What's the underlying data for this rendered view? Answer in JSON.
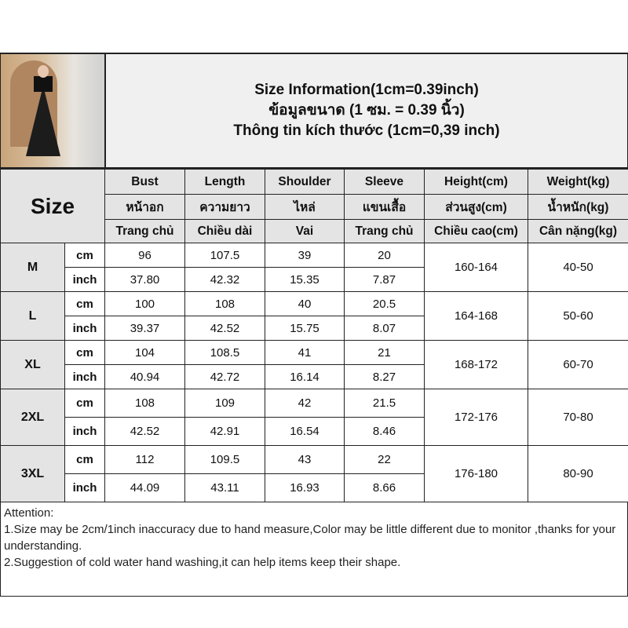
{
  "title": {
    "line1": "Size Information(1cm=0.39inch)",
    "line2": "ข้อมูลขนาด (1 ซม. = 0.39 นิ้ว)",
    "line3": "Thông tin kích thước (1cm=0,39 inch)"
  },
  "header": {
    "size": "Size",
    "row1": [
      "Bust",
      "Length",
      "Shoulder",
      "Sleeve",
      "Height(cm)",
      "Weight(kg)"
    ],
    "row2": [
      "หน้าอก",
      "ความยาว",
      "ไหล่",
      "แขนเสื้อ",
      "ส่วนสูง(cm)",
      "น้ำหนัก(kg)"
    ],
    "row3": [
      "Trang chủ",
      "Chiều dài",
      "Vai",
      "Trang chủ",
      "Chiều cao(cm)",
      "Cân nặng(kg)"
    ]
  },
  "units": {
    "cm": "cm",
    "inch": "inch"
  },
  "sizes": [
    {
      "label": "M",
      "cm": [
        "96",
        "107.5",
        "39",
        "20"
      ],
      "inch": [
        "37.80",
        "42.32",
        "15.35",
        "7.87"
      ],
      "height": "160-164",
      "weight": "40-50"
    },
    {
      "label": "L",
      "cm": [
        "100",
        "108",
        "40",
        "20.5"
      ],
      "inch": [
        "39.37",
        "42.52",
        "15.75",
        "8.07"
      ],
      "height": "164-168",
      "weight": "50-60"
    },
    {
      "label": "XL",
      "cm": [
        "104",
        "108.5",
        "41",
        "21"
      ],
      "inch": [
        "40.94",
        "42.72",
        "16.14",
        "8.27"
      ],
      "height": "168-172",
      "weight": "60-70"
    },
    {
      "label": "2XL",
      "cm": [
        "108",
        "109",
        "42",
        "21.5"
      ],
      "inch": [
        "42.52",
        "42.91",
        "16.54",
        "8.46"
      ],
      "height": "172-176",
      "weight": "70-80"
    },
    {
      "label": "3XL",
      "cm": [
        "112",
        "109.5",
        "43",
        "22"
      ],
      "inch": [
        "44.09",
        "43.11",
        "16.93",
        "8.66"
      ],
      "height": "176-180",
      "weight": "80-90"
    }
  ],
  "attention": {
    "heading": "Attention:",
    "line1": "1.Size may be 2cm/1inch inaccuracy due to hand measure,Color may be little different due to monitor ,thanks for your understanding.",
    "line2": "2.Suggestion of cold water hand washing,it can help items keep their shape."
  }
}
